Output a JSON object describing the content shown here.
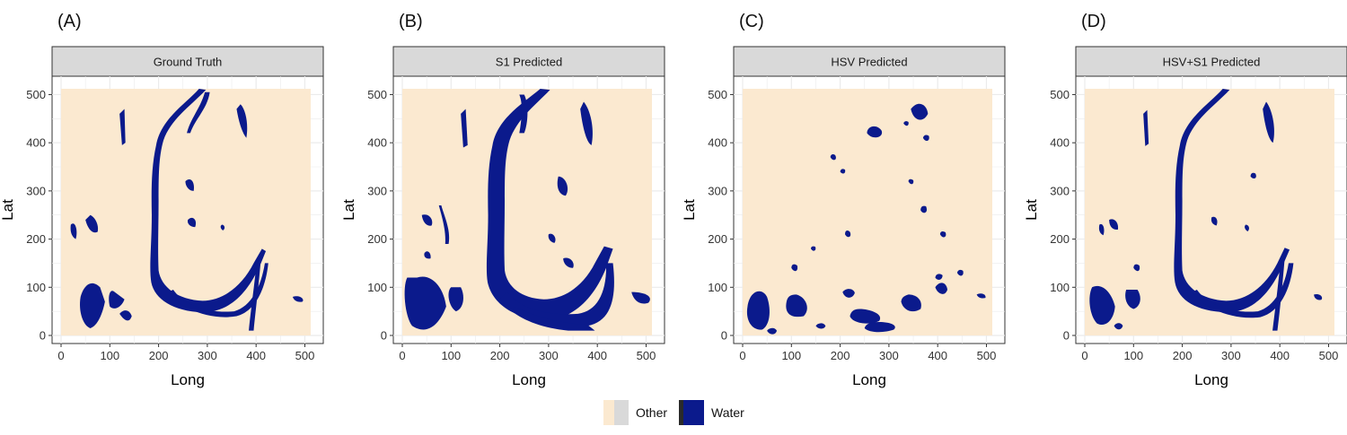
{
  "colors": {
    "other": "#fbe9d0",
    "water": "#0b1a8c",
    "strip_fill": "#d9d9d9",
    "grid": "#ebebeb"
  },
  "legend": {
    "items": [
      {
        "label": "Other",
        "color": "#fbe9d0"
      },
      {
        "label": "Water",
        "color": "#0b1a8c"
      }
    ]
  },
  "chart_data": [
    {
      "type": "heatmap",
      "panel_label": "(A)",
      "title": "Ground Truth",
      "xlabel": "Long",
      "ylabel": "Lat",
      "xlim": [
        0,
        512
      ],
      "ylim": [
        0,
        512
      ],
      "xticks": [
        0,
        100,
        200,
        300,
        400,
        500
      ],
      "yticks": [
        0,
        100,
        200,
        300,
        400,
        500
      ],
      "grid": true,
      "categories": [
        "Other",
        "Water"
      ]
    },
    {
      "type": "heatmap",
      "panel_label": "(B)",
      "title": "S1 Predicted",
      "xlabel": "Long",
      "ylabel": "Lat",
      "xlim": [
        0,
        512
      ],
      "ylim": [
        0,
        512
      ],
      "xticks": [
        0,
        100,
        200,
        300,
        400,
        500
      ],
      "yticks": [
        0,
        100,
        200,
        300,
        400,
        500
      ],
      "grid": true,
      "categories": [
        "Other",
        "Water"
      ]
    },
    {
      "type": "heatmap",
      "panel_label": "(C)",
      "title": "HSV Predicted",
      "xlabel": "Long",
      "ylabel": "Lat",
      "xlim": [
        0,
        512
      ],
      "ylim": [
        0,
        512
      ],
      "xticks": [
        0,
        100,
        200,
        300,
        400,
        500
      ],
      "yticks": [
        0,
        100,
        200,
        300,
        400,
        500
      ],
      "grid": true,
      "categories": [
        "Other",
        "Water"
      ]
    },
    {
      "type": "heatmap",
      "panel_label": "(D)",
      "title": "HSV+S1 Predicted",
      "xlabel": "Long",
      "ylabel": "Lat",
      "xlim": [
        0,
        512
      ],
      "ylim": [
        0,
        512
      ],
      "xticks": [
        0,
        100,
        200,
        300,
        400,
        500
      ],
      "yticks": [
        0,
        100,
        200,
        300,
        400,
        500
      ],
      "grid": true,
      "categories": [
        "Other",
        "Water"
      ]
    }
  ]
}
